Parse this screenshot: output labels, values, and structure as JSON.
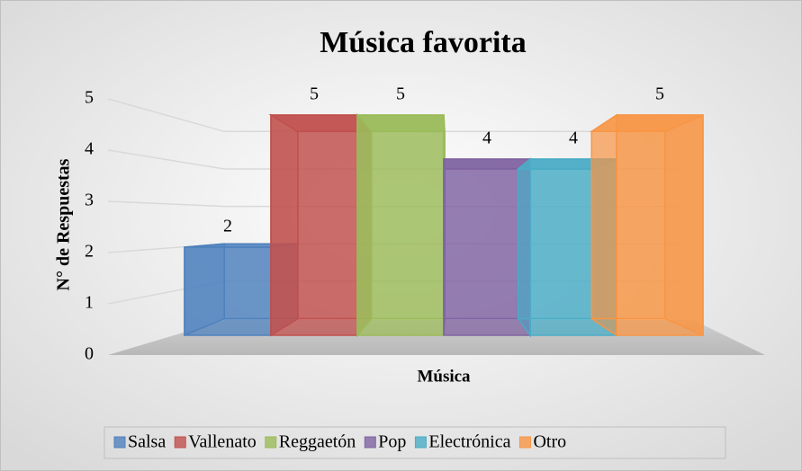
{
  "chart_data": {
    "type": "bar3d",
    "title": "Música favorita",
    "x_label": "Música",
    "y_label": "N° de Respuestas",
    "categories": [
      "Salsa",
      "Vallenato",
      "Reggaetón",
      "Pop",
      "Electrónica",
      "Otro"
    ],
    "values": [
      2,
      5,
      5,
      4,
      4,
      5
    ],
    "colors": [
      "#4f81bd",
      "#c0504d",
      "#9bbb59",
      "#8064a2",
      "#4bacc6",
      "#f79646"
    ],
    "ylim": [
      0,
      5
    ],
    "yticks": [
      0,
      1,
      2,
      3,
      4,
      5
    ],
    "grid": true,
    "legend": "bottom"
  }
}
